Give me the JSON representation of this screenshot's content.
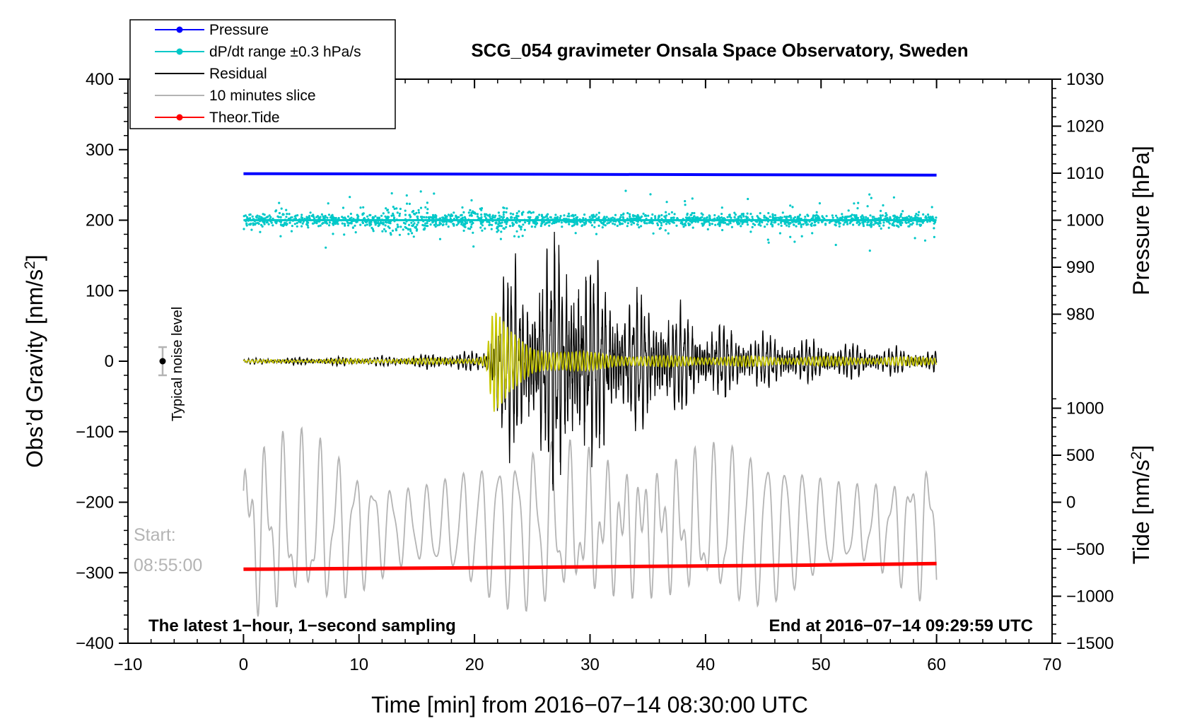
{
  "chart_data": {
    "type": "line",
    "title": "SCG_054 gravimeter Onsala Space Observatory, Sweden",
    "xlabel": "Time [min] from 2016−07−14 08:30:00 UTC",
    "ylabel_left": "Obs’d Gravity [nm/s",
    "ylabel_left_sup": "2",
    "ylabel_left_end": "]",
    "ylabel_pressure": "Pressure [hPa]",
    "ylabel_tide": "Tide [nm/s",
    "ylabel_tide_sup": "2",
    "ylabel_tide_end": "]",
    "xlim": [
      -10,
      70
    ],
    "ylim": [
      -400,
      400
    ],
    "x_ticks": [
      -10,
      0,
      10,
      20,
      30,
      40,
      50,
      60,
      70
    ],
    "x_tick_labels": [
      "−10",
      "0",
      "10",
      "20",
      "30",
      "40",
      "50",
      "60",
      "70"
    ],
    "y_ticks": [
      400,
      300,
      200,
      100,
      0,
      -100,
      -200,
      -300,
      -400
    ],
    "y_tick_labels": [
      "400",
      "300",
      "200",
      "100",
      "0",
      "−100",
      "−200",
      "−300",
      "−400"
    ],
    "pressure_axis": {
      "range": [
        970,
        1030
      ],
      "ticks": [
        1030,
        1020,
        1010,
        1000,
        990,
        980
      ],
      "tick_labels": [
        "1030",
        "1020",
        "1010",
        "1000",
        "990",
        "980"
      ]
    },
    "tide_axis": {
      "range": [
        -1500,
        1500
      ],
      "ticks": [
        1000,
        500,
        0,
        -500,
        -1000,
        -1500
      ],
      "tick_labels": [
        "1000",
        "500",
        "0",
        "−500",
        "−1000",
        "−1500"
      ]
    },
    "legend": {
      "position": "top-left",
      "entries": [
        {
          "label": "Pressure",
          "color": "#0000ff"
        },
        {
          "label": "dP/dt range ±0.3 hPa/s",
          "color": "#00c8c8"
        },
        {
          "label": "Residual",
          "color": "#000000"
        },
        {
          "label": "10 minutes slice",
          "color": "#b4b4b4"
        },
        {
          "label": "Theor.Tide",
          "color": "#ff0000"
        }
      ]
    },
    "series": [
      {
        "name": "Pressure",
        "axis": "pressure",
        "color": "#0000ff",
        "x": [
          0,
          60
        ],
        "y": [
          1009.9,
          1009.6
        ]
      },
      {
        "name": "dP/dt range ±0.3 hPa/s",
        "color": "#00c8c8",
        "center": 200,
        "typical_spread": 10,
        "x_range": [
          0,
          60
        ]
      },
      {
        "name": "Residual",
        "color": "#000000",
        "envelope_x": [
          0,
          13,
          20,
          21,
          22,
          24,
          26,
          29,
          30,
          33,
          35,
          40,
          45,
          50,
          60
        ],
        "envelope_amp": [
          4,
          8,
          15,
          20,
          120,
          150,
          175,
          190,
          150,
          110,
          100,
          60,
          40,
          30,
          15
        ]
      },
      {
        "name": "Residual (low-pass)",
        "color": "#c8c800",
        "envelope_x": [
          0,
          20,
          21,
          21.6,
          23,
          25,
          28,
          35,
          60
        ],
        "envelope_amp": [
          2,
          5,
          10,
          80,
          45,
          25,
          15,
          8,
          6
        ]
      },
      {
        "name": "10 minutes slice",
        "color": "#b4b4b4",
        "x_range": [
          0,
          60
        ],
        "y_range": [
          -400,
          -70
        ]
      },
      {
        "name": "Theor.Tide",
        "color": "#ff0000",
        "x": [
          0,
          20,
          35,
          50,
          60
        ],
        "y": [
          -295,
          -293,
          -291,
          -289,
          -287
        ]
      }
    ],
    "noise_bar": {
      "label": "Typical noise level",
      "x": -7,
      "y": 0,
      "error": 20
    },
    "annotations": {
      "start_label": "Start:",
      "start_time": "08:55:00",
      "left_note": "The latest 1−hour, 1−second sampling",
      "right_note": "End at 2016−07−14 09:29:59 UTC"
    }
  }
}
